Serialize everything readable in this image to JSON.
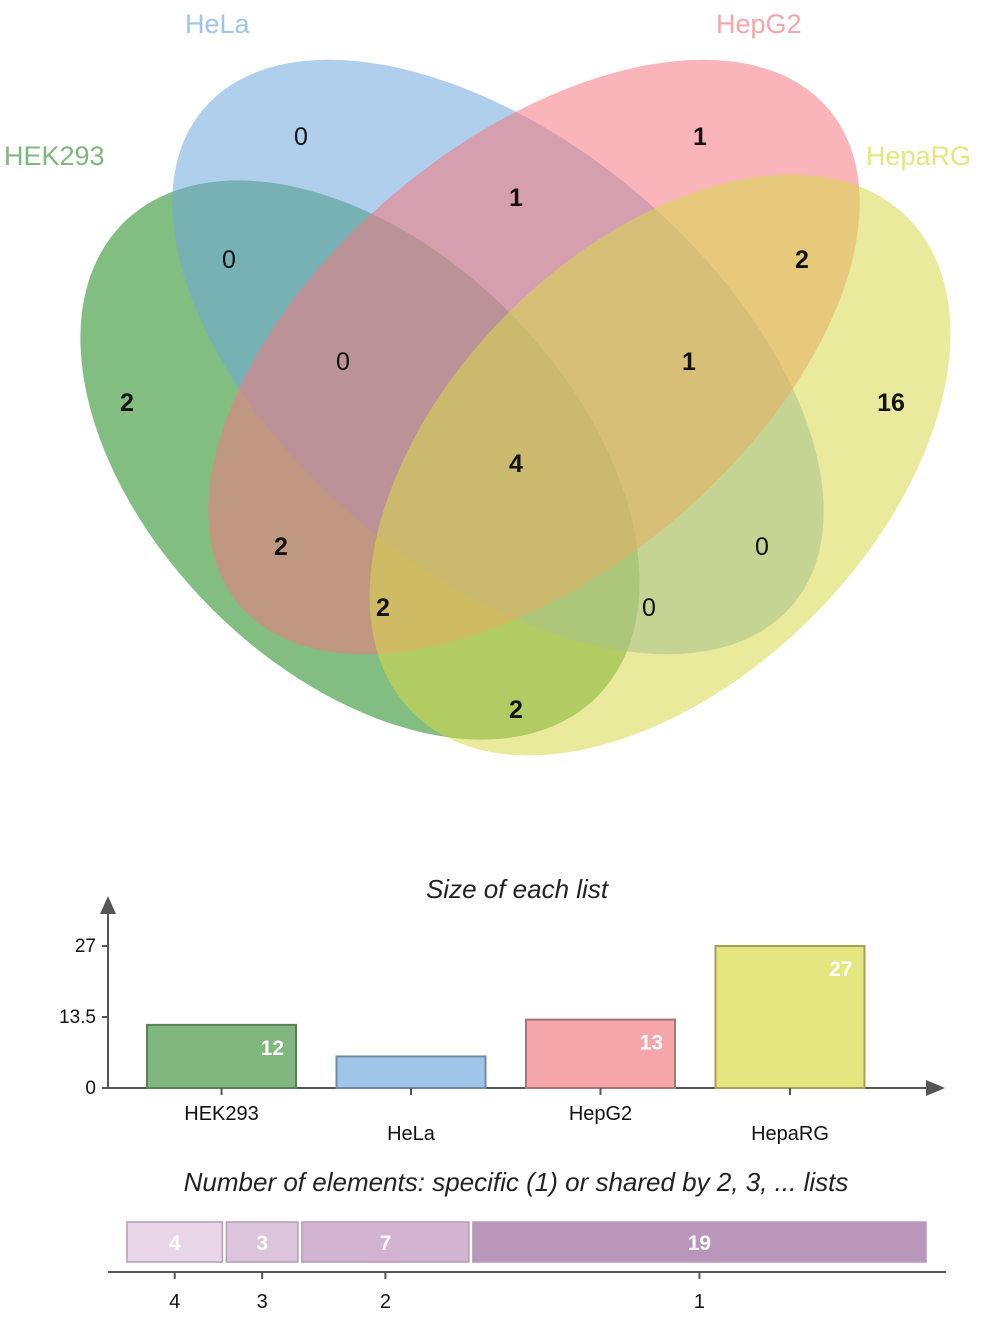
{
  "venn": {
    "sets": [
      {
        "id": "hek293",
        "label": "HEK293",
        "color": "#3f9a3f"
      },
      {
        "id": "hela",
        "label": "HeLa",
        "color": "#6fa8dc"
      },
      {
        "id": "hepg2",
        "label": "HepG2",
        "color": "#f4787f"
      },
      {
        "id": "heparg",
        "label": "HepaRG",
        "color": "#d8d84a"
      }
    ],
    "label_colors": {
      "hek293": "#7fb77f",
      "hela": "#9fc5e8",
      "hepg2": "#f4a6aa",
      "heparg": "#e6e680"
    },
    "regions": [
      {
        "sets": [
          "hela"
        ],
        "value": "0",
        "bold": false
      },
      {
        "sets": [
          "hepg2"
        ],
        "value": "1",
        "bold": true
      },
      {
        "sets": [
          "hela",
          "hepg2"
        ],
        "value": "1",
        "bold": true
      },
      {
        "sets": [
          "hek293",
          "hela"
        ],
        "value": "0",
        "bold": false
      },
      {
        "sets": [
          "hepg2",
          "heparg"
        ],
        "value": "2",
        "bold": true
      },
      {
        "sets": [
          "hek293",
          "hela",
          "hepg2"
        ],
        "value": "0",
        "bold": false
      },
      {
        "sets": [
          "hela",
          "hepg2",
          "heparg"
        ],
        "value": "1",
        "bold": true
      },
      {
        "sets": [
          "hek293"
        ],
        "value": "2",
        "bold": true
      },
      {
        "sets": [
          "heparg"
        ],
        "value": "16",
        "bold": true
      },
      {
        "sets": [
          "hek293",
          "hela",
          "hepg2",
          "heparg"
        ],
        "value": "4",
        "bold": true
      },
      {
        "sets": [
          "hek293",
          "hepg2"
        ],
        "value": "2",
        "bold": true
      },
      {
        "sets": [
          "hela",
          "heparg"
        ],
        "value": "0",
        "bold": false
      },
      {
        "sets": [
          "hek293",
          "hepg2",
          "heparg"
        ],
        "value": "2",
        "bold": true
      },
      {
        "sets": [
          "hek293",
          "hela",
          "heparg"
        ],
        "value": "0",
        "bold": false
      },
      {
        "sets": [
          "hek293",
          "heparg"
        ],
        "value": "2",
        "bold": true
      }
    ]
  },
  "chart_data": [
    {
      "type": "bar",
      "title": "Size of each list",
      "categories": [
        "HEK293",
        "HeLa",
        "HepG2",
        "HepaRG"
      ],
      "values": [
        12,
        6,
        13,
        27
      ],
      "colors": [
        "#7fb77f",
        "#9fc5e8",
        "#f4a6aa",
        "#e6e680"
      ],
      "ylim": [
        0,
        27
      ],
      "yticks": [
        "0",
        "13.5",
        "27"
      ],
      "xlabel": "",
      "ylabel": ""
    },
    {
      "type": "bar",
      "orientation": "horizontal-stacked",
      "title": "Number of elements: specific (1) or shared by 2, 3, ... lists",
      "categories": [
        "4",
        "3",
        "2",
        "1"
      ],
      "values": [
        4,
        3,
        7,
        19
      ],
      "colors": [
        "#e8d6e8",
        "#dcc4dc",
        "#d2b4d2",
        "#bb96bb"
      ],
      "xlabel": "",
      "ylabel": ""
    }
  ]
}
